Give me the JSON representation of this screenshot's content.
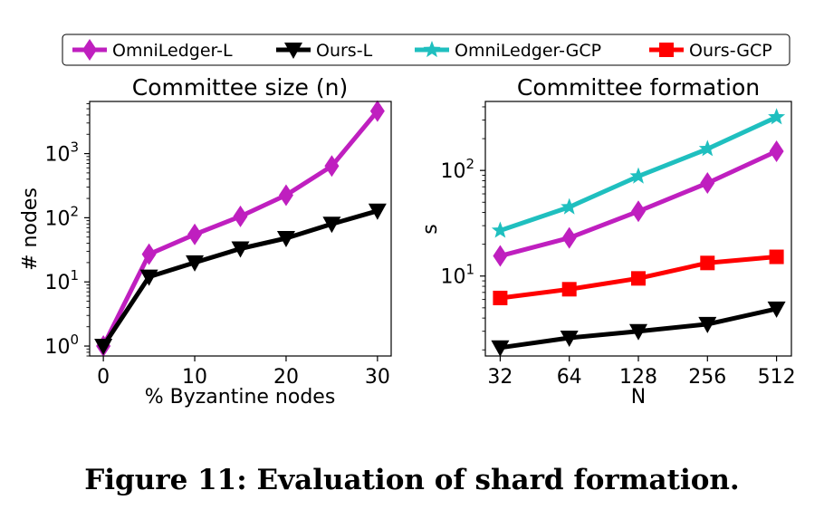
{
  "legend": [
    {
      "name": "OmniLedger-L",
      "color": "#BF1FBF",
      "marker": "diamond"
    },
    {
      "name": "Ours-L",
      "color": "#000000",
      "marker": "triangle-down"
    },
    {
      "name": "OmniLedger-GCP",
      "color": "#1FBFBF",
      "marker": "star"
    },
    {
      "name": "Ours-GCP",
      "color": "#FF0000",
      "marker": "square"
    }
  ],
  "chart_data": [
    {
      "type": "line",
      "title": "Committee size (n)",
      "xlabel": "% Byzantine nodes",
      "ylabel": "# nodes",
      "yscale": "log",
      "x": [
        0,
        5,
        10,
        15,
        20,
        25,
        30
      ],
      "xticks": [
        "0",
        "10",
        "20",
        "30"
      ],
      "yticks": [
        {
          "base": "10",
          "exp": "0"
        },
        {
          "base": "10",
          "exp": "1"
        },
        {
          "base": "10",
          "exp": "2"
        },
        {
          "base": "10",
          "exp": "3"
        }
      ],
      "xlim": [
        -1.5,
        31.5
      ],
      "ylim": [
        0.7,
        6500
      ],
      "series": [
        {
          "name": "OmniLedger-L",
          "values": [
            1,
            27,
            55,
            105,
            225,
            640,
            4600
          ]
        },
        {
          "name": "Ours-L",
          "values": [
            1,
            12,
            20,
            33,
            48,
            80,
            128
          ]
        }
      ]
    },
    {
      "type": "line",
      "title": "Committee formation",
      "xlabel": "N",
      "ylabel": "s",
      "yscale": "log",
      "xscale": "log2",
      "x": [
        32,
        64,
        128,
        256,
        512
      ],
      "xticks": [
        "32",
        "64",
        "128",
        "256",
        "512"
      ],
      "yticks": [
        {
          "base": "10",
          "exp": "1"
        },
        {
          "base": "10",
          "exp": "2"
        }
      ],
      "ylim": [
        1.75,
        450
      ],
      "series": [
        {
          "name": "OmniLedger-GCP",
          "values": [
            27,
            45,
            88,
            160,
            320
          ]
        },
        {
          "name": "OmniLedger-L",
          "values": [
            15.5,
            23,
            41,
            76,
            152
          ]
        },
        {
          "name": "Ours-GCP",
          "values": [
            6.2,
            7.5,
            9.5,
            13.3,
            15.2
          ]
        },
        {
          "name": "Ours-L",
          "values": [
            2.1,
            2.6,
            3.0,
            3.5,
            4.9
          ]
        }
      ]
    }
  ],
  "caption": "Figure 11: Evaluation of shard formation."
}
